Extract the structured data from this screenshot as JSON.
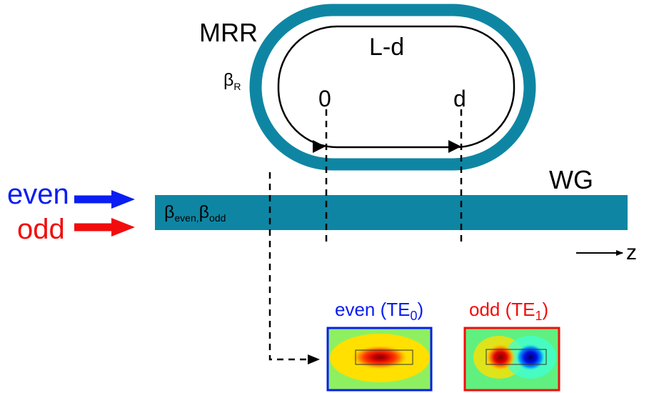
{
  "colors": {
    "ring": "#0e86a3",
    "waveguide": "#0e86a3",
    "even": "#0a1df2",
    "odd": "#f20d0d",
    "path": "#000000"
  },
  "ring": {
    "label": "MRR",
    "beta": "β",
    "beta_sub": "R",
    "path_label": "L-d",
    "point_start": "0",
    "point_end": "d"
  },
  "waveguide": {
    "label": "WG",
    "beta_even": "β",
    "beta_even_sub": "even,",
    "beta_odd": "β",
    "beta_odd_sub": "odd"
  },
  "inputs": {
    "even_label": "even",
    "odd_label": "odd"
  },
  "axis": {
    "label": "z"
  },
  "modes": {
    "even_title": "even (TE",
    "even_sub": "0",
    "odd_title": "odd (TE",
    "odd_sub": "1",
    "close": ")"
  }
}
